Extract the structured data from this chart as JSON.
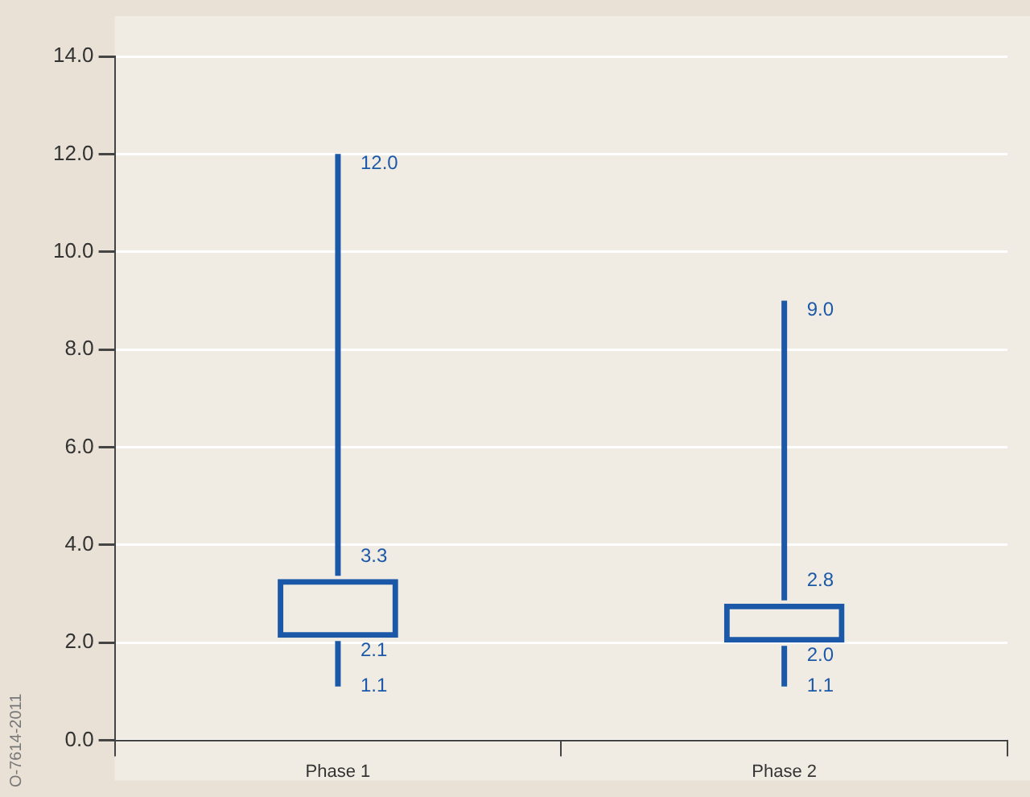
{
  "chart_data": {
    "type": "box",
    "categories": [
      "Phase 1",
      "Phase 2"
    ],
    "boxes": [
      {
        "low": 1.1,
        "q1": 2.1,
        "q3": 3.3,
        "high": 12.0
      },
      {
        "low": 1.1,
        "q1": 2.0,
        "q3": 2.8,
        "high": 9.0
      }
    ],
    "color": "#1b59a8",
    "ylim": [
      0,
      14
    ],
    "yticks": [
      {
        "value": 0,
        "label": "0.0"
      },
      {
        "value": 2,
        "label": "2.0"
      },
      {
        "value": 4,
        "label": "4.0"
      },
      {
        "value": 6,
        "label": "6.0"
      },
      {
        "value": 8,
        "label": "8.0"
      },
      {
        "value": 10,
        "label": "10.0"
      },
      {
        "value": 12,
        "label": "12.0"
      },
      {
        "value": 14,
        "label": "14.0"
      }
    ],
    "grid": "y",
    "annotations": [
      {
        "text": "12.0",
        "x": "Phase 1",
        "y": 12.0
      },
      {
        "text": "3.3",
        "x": "Phase 1",
        "y": 3.3
      },
      {
        "text": "2.1",
        "x": "Phase 1",
        "y": 2.1
      },
      {
        "text": "1.1",
        "x": "Phase 1",
        "y": 1.1
      },
      {
        "text": "9.0",
        "x": "Phase 2",
        "y": 9.0
      },
      {
        "text": "2.8",
        "x": "Phase 2",
        "y": 2.8
      },
      {
        "text": "2.0",
        "x": "Phase 2",
        "y": 2.0
      },
      {
        "text": "1.1",
        "x": "Phase 2",
        "y": 1.1
      },
      "O-7614-2011"
    ]
  }
}
